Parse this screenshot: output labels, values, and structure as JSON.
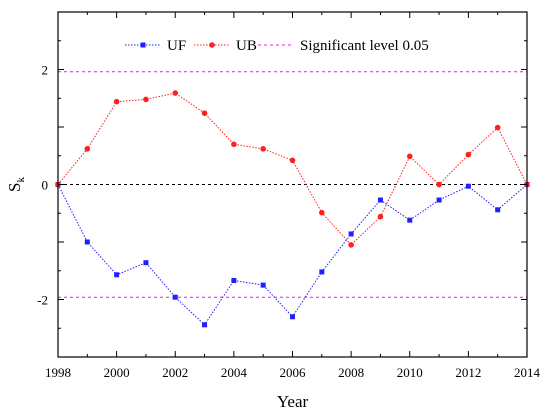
{
  "chart_data": {
    "type": "line",
    "title": "",
    "xlabel": "Year",
    "ylabel": "S",
    "ylabel_subscript": "k",
    "x": [
      1998,
      1999,
      2000,
      2001,
      2002,
      2003,
      2004,
      2005,
      2006,
      2007,
      2008,
      2009,
      2010,
      2011,
      2012,
      2013,
      2014
    ],
    "xlim": [
      1998,
      2014
    ],
    "ylim": [
      -3,
      3
    ],
    "xticks": [
      1998,
      2000,
      2002,
      2004,
      2006,
      2008,
      2010,
      2012,
      2014
    ],
    "yticks": [
      -2,
      0,
      2
    ],
    "xtick_labels": [
      "1998",
      "2000",
      "2002",
      "2004",
      "2006",
      "2008",
      "2010",
      "2012",
      "2014"
    ],
    "ytick_labels": [
      "-2",
      "0",
      "2"
    ],
    "series": [
      {
        "name": "UF",
        "color": "#1f1fff",
        "marker": "square",
        "values": [
          0.0,
          -1.0,
          -1.57,
          -1.36,
          -1.96,
          -2.44,
          -1.67,
          -1.75,
          -2.3,
          -1.52,
          -0.86,
          -0.27,
          -0.62,
          -0.27,
          -0.03,
          -0.44,
          0.0
        ]
      },
      {
        "name": "UB",
        "color": "#ff1f1f",
        "marker": "circle",
        "values": [
          0.0,
          0.62,
          1.44,
          1.48,
          1.59,
          1.24,
          0.7,
          0.62,
          0.42,
          -0.49,
          -1.05,
          -0.56,
          0.49,
          0.0,
          0.52,
          0.99,
          0.0
        ]
      }
    ],
    "reference_lines": [
      {
        "name": "Significant level 0.05",
        "values": [
          1.96,
          -1.96
        ],
        "color": "#e020e0",
        "style": "dashed"
      },
      {
        "value": 0,
        "color": "#000000",
        "style": "dashed"
      }
    ],
    "legend": {
      "placement": "top-center",
      "entries": [
        "UF",
        "UB",
        "Significant level 0.05"
      ]
    },
    "grid": false
  }
}
